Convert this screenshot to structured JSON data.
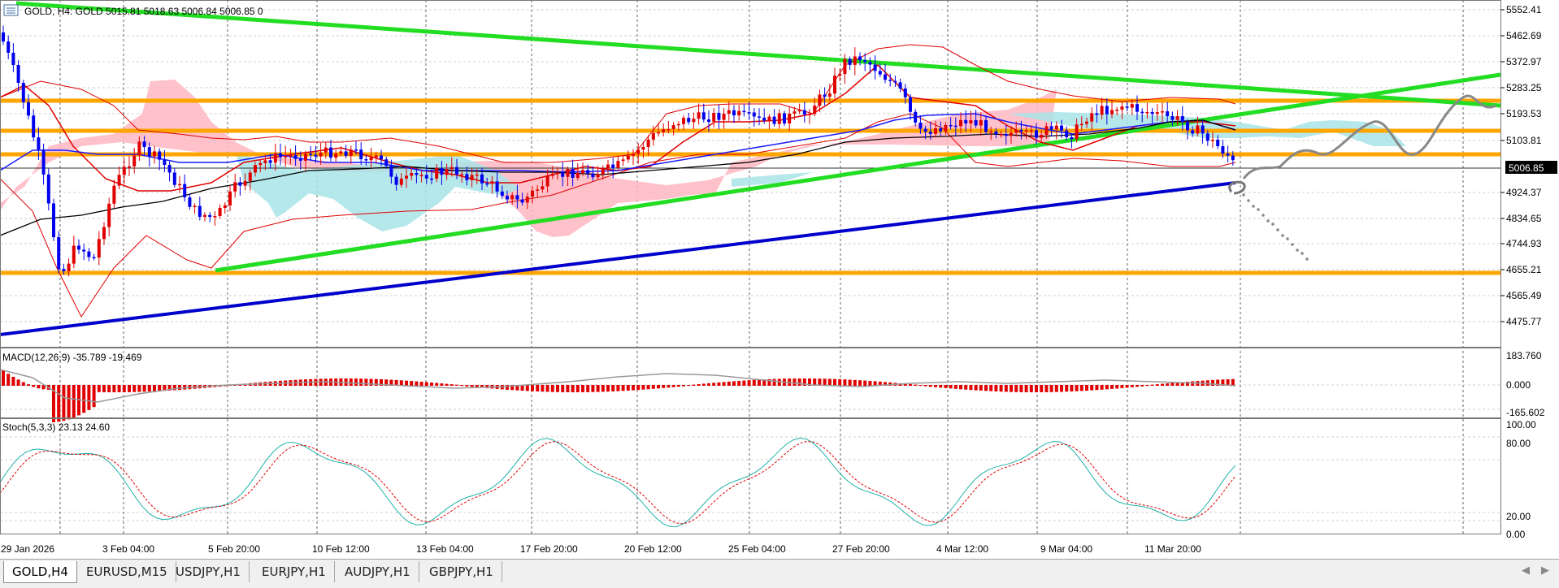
{
  "header": {
    "symbol_text": "GOLD, H4:  GOLD  5015.81 5018.63 5006.84 5006.85  0"
  },
  "price_axis": {
    "labels": [
      "5552.41",
      "5462.69",
      "5372.97",
      "5283.25",
      "5193.53",
      "5103.81",
      "4924.37",
      "4834.65",
      "4744.93",
      "4655.21",
      "4565.49",
      "4475.77"
    ],
    "current_price": "5006.85"
  },
  "macd": {
    "label": "MACD(12,26,9) -35.789 -19.469",
    "axis": [
      "183.760",
      "0.000",
      "-165.602"
    ]
  },
  "stoch": {
    "label": "Stoch(5,3,3) 23.13 24.60",
    "axis": [
      "100.00",
      "80.00",
      "20.00",
      "0.00"
    ]
  },
  "time_axis": [
    "29 Jan 2026",
    "3 Feb 04:00",
    "5 Feb 20:00",
    "10 Feb 12:00",
    "13 Feb 04:00",
    "17 Feb 20:00",
    "20 Feb 12:00",
    "25 Feb 04:00",
    "27 Feb 20:00",
    "4 Mar 12:00",
    "9 Mar 04:00",
    "11 Mar 20:00"
  ],
  "tabs": [
    {
      "label": "GOLD,H4",
      "active": true
    },
    {
      "label": "EURUSD,M15",
      "active": false
    },
    {
      "label": "USDJPY,H1",
      "active": false
    },
    {
      "label": "EURJPY,H1",
      "active": false
    },
    {
      "label": "AUDJPY,H1",
      "active": false
    },
    {
      "label": "GBPJPY,H1",
      "active": false
    }
  ],
  "scroll": {
    "left": "◀",
    "right": "▶"
  },
  "colors": {
    "bull": "#e00000",
    "bear": "#0000ee",
    "trendline": "#22dd22",
    "level": "#ffa500",
    "ma_long": "#0000cc",
    "kumo_bull": "#ffb6c1",
    "kumo_bear": "#a8e4e8"
  }
}
